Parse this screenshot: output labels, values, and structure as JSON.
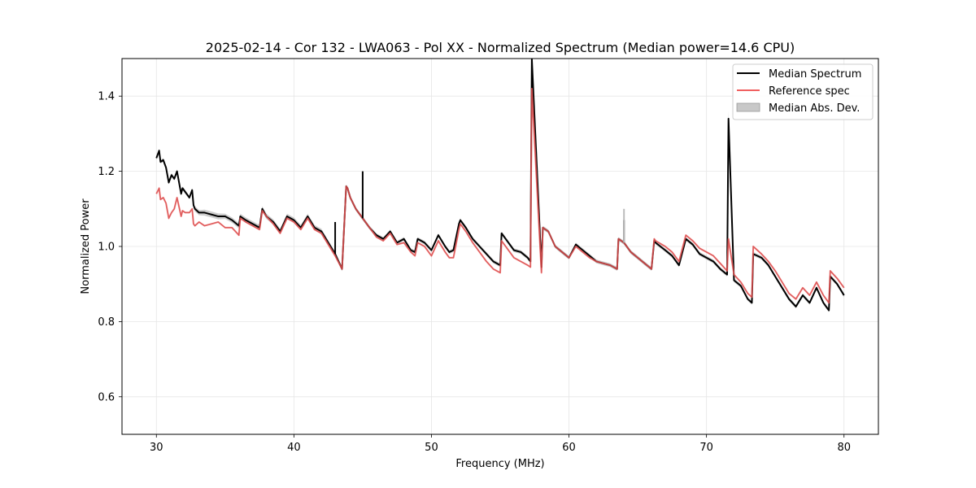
{
  "chart_data": {
    "type": "line",
    "title": "2025-02-14 - Cor 132 - LWA063 - Pol XX - Normalized Spectrum (Median power=14.6 CPU)",
    "xlabel": "Frequency (MHz)",
    "ylabel": "Normalized Power",
    "xlim": [
      27.5,
      82.5
    ],
    "ylim": [
      0.5,
      1.5
    ],
    "xticks": [
      30,
      40,
      50,
      60,
      70,
      80
    ],
    "yticks": [
      0.6,
      0.8,
      1.0,
      1.2,
      1.4
    ],
    "xtick_labels": [
      "30",
      "40",
      "50",
      "60",
      "70",
      "80"
    ],
    "ytick_labels": [
      "0.6",
      "0.8",
      "1.0",
      "1.2",
      "1.4"
    ],
    "grid": true,
    "legend_position": "top-right",
    "colors": {
      "median": "#000000",
      "reference": "#f06060",
      "mad": "#c8c8c8",
      "overlap": "#8b0000"
    },
    "series": [
      {
        "name": "Median Spectrum",
        "x": [
          30.0,
          30.2,
          30.3,
          30.5,
          30.7,
          30.9,
          31.1,
          31.3,
          31.5,
          31.8,
          31.9,
          32.1,
          32.4,
          32.6,
          32.7,
          32.8,
          33.1,
          33.5,
          34.0,
          34.5,
          35.0,
          35.5,
          36.0,
          36.1,
          36.5,
          37.0,
          37.5,
          37.7,
          38.0,
          38.5,
          39.0,
          39.5,
          40.0,
          40.5,
          41.0,
          41.5,
          42.0,
          42.5,
          43.0,
          43.5,
          43.8,
          43.9,
          44.1,
          44.5,
          45.0,
          45.5,
          46.0,
          46.5,
          47.0,
          47.5,
          48.0,
          48.5,
          48.8,
          49.0,
          49.5,
          50.0,
          50.5,
          51.0,
          51.3,
          51.6,
          52.0,
          52.1,
          52.5,
          53.0,
          53.5,
          54.0,
          54.5,
          55.0,
          55.1,
          55.5,
          56.0,
          56.5,
          57.0,
          57.2,
          57.3,
          58.0,
          58.1,
          58.5,
          59.0,
          59.5,
          60.0,
          60.5,
          61.0,
          61.5,
          62.0,
          62.5,
          63.0,
          63.5,
          63.6,
          64.0,
          64.5,
          65.0,
          65.5,
          66.0,
          66.2,
          66.3,
          67.0,
          67.5,
          68.0,
          68.5,
          69.0,
          69.5,
          70.0,
          70.5,
          71.0,
          71.5,
          71.6,
          72.0,
          72.5,
          73.0,
          73.3,
          73.4,
          74.0,
          74.5,
          75.0,
          75.5,
          76.0,
          76.5,
          77.0,
          77.5,
          78.0,
          78.5,
          78.9,
          79.0,
          79.5,
          80.0
        ],
        "values": [
          1.235,
          1.255,
          1.225,
          1.23,
          1.21,
          1.17,
          1.19,
          1.18,
          1.2,
          1.14,
          1.155,
          1.145,
          1.13,
          1.15,
          1.11,
          1.1,
          1.09,
          1.09,
          1.085,
          1.08,
          1.08,
          1.07,
          1.055,
          1.08,
          1.07,
          1.06,
          1.05,
          1.1,
          1.08,
          1.065,
          1.04,
          1.08,
          1.07,
          1.05,
          1.08,
          1.05,
          1.04,
          1.01,
          0.98,
          0.94,
          1.16,
          1.155,
          1.13,
          1.1,
          1.075,
          1.05,
          1.03,
          1.02,
          1.04,
          1.01,
          1.02,
          0.99,
          0.985,
          1.02,
          1.01,
          0.99,
          1.03,
          1.0,
          0.985,
          0.99,
          1.06,
          1.07,
          1.05,
          1.02,
          1.0,
          0.98,
          0.96,
          0.95,
          1.035,
          1.015,
          0.99,
          0.985,
          0.97,
          0.96,
          1.5,
          0.945,
          1.05,
          1.04,
          1.0,
          0.985,
          0.97,
          1.005,
          0.99,
          0.975,
          0.96,
          0.955,
          0.95,
          0.94,
          1.02,
          1.01,
          0.985,
          0.97,
          0.955,
          0.94,
          1.015,
          1.01,
          0.99,
          0.975,
          0.95,
          1.02,
          1.005,
          0.98,
          0.97,
          0.96,
          0.94,
          0.925,
          1.34,
          0.91,
          0.895,
          0.86,
          0.85,
          0.98,
          0.97,
          0.95,
          0.92,
          0.89,
          0.86,
          0.84,
          0.87,
          0.85,
          0.89,
          0.85,
          0.83,
          0.92,
          0.9,
          0.87
        ]
      },
      {
        "name": "Reference spec",
        "x": [
          30.0,
          30.2,
          30.3,
          30.5,
          30.7,
          30.9,
          31.1,
          31.3,
          31.5,
          31.8,
          31.9,
          32.1,
          32.4,
          32.6,
          32.7,
          32.8,
          33.1,
          33.5,
          34.0,
          34.5,
          35.0,
          35.5,
          36.0,
          36.1,
          36.5,
          37.0,
          37.5,
          37.7,
          38.0,
          38.5,
          39.0,
          39.5,
          40.0,
          40.5,
          41.0,
          41.5,
          42.0,
          42.5,
          43.0,
          43.5,
          43.8,
          43.9,
          44.1,
          44.5,
          45.0,
          45.5,
          46.0,
          46.5,
          47.0,
          47.5,
          48.0,
          48.5,
          48.8,
          49.0,
          49.5,
          50.0,
          50.5,
          51.0,
          51.3,
          51.6,
          52.0,
          52.1,
          52.5,
          53.0,
          53.5,
          54.0,
          54.5,
          55.0,
          55.1,
          55.5,
          56.0,
          56.5,
          57.0,
          57.2,
          57.3,
          58.0,
          58.1,
          58.5,
          59.0,
          59.5,
          60.0,
          60.5,
          61.0,
          61.5,
          62.0,
          62.5,
          63.0,
          63.5,
          63.6,
          64.0,
          64.5,
          65.0,
          65.5,
          66.0,
          66.2,
          66.3,
          67.0,
          67.5,
          68.0,
          68.5,
          69.0,
          69.5,
          70.0,
          70.5,
          71.0,
          71.5,
          71.6,
          72.0,
          72.5,
          73.0,
          73.3,
          73.4,
          74.0,
          74.5,
          75.0,
          75.5,
          76.0,
          76.5,
          77.0,
          77.5,
          78.0,
          78.5,
          78.9,
          79.0,
          79.5,
          80.0
        ],
        "values": [
          1.14,
          1.155,
          1.125,
          1.13,
          1.115,
          1.075,
          1.09,
          1.1,
          1.13,
          1.08,
          1.095,
          1.09,
          1.09,
          1.1,
          1.06,
          1.055,
          1.065,
          1.055,
          1.06,
          1.065,
          1.05,
          1.05,
          1.03,
          1.075,
          1.065,
          1.055,
          1.045,
          1.095,
          1.08,
          1.06,
          1.035,
          1.075,
          1.065,
          1.045,
          1.075,
          1.045,
          1.035,
          1.005,
          0.975,
          0.94,
          1.16,
          1.155,
          1.13,
          1.1,
          1.075,
          1.05,
          1.025,
          1.015,
          1.035,
          1.005,
          1.01,
          0.985,
          0.975,
          1.01,
          1.0,
          0.975,
          1.015,
          0.985,
          0.97,
          0.97,
          1.045,
          1.06,
          1.04,
          1.01,
          0.985,
          0.96,
          0.94,
          0.93,
          1.015,
          0.995,
          0.97,
          0.96,
          0.95,
          0.945,
          1.42,
          0.93,
          1.05,
          1.04,
          1.0,
          0.985,
          0.97,
          1.0,
          0.985,
          0.97,
          0.96,
          0.955,
          0.95,
          0.94,
          1.02,
          1.01,
          0.985,
          0.97,
          0.955,
          0.94,
          1.02,
          1.015,
          1.0,
          0.985,
          0.96,
          1.03,
          1.015,
          0.995,
          0.985,
          0.975,
          0.955,
          0.935,
          1.02,
          0.925,
          0.905,
          0.875,
          0.865,
          1.0,
          0.98,
          0.96,
          0.935,
          0.905,
          0.875,
          0.86,
          0.89,
          0.87,
          0.905,
          0.87,
          0.85,
          0.935,
          0.915,
          0.89
        ]
      },
      {
        "name": "Median Abs. Dev.",
        "x": [
          30.0,
          30.2,
          30.3,
          30.5,
          30.7,
          30.9,
          31.1,
          31.3,
          31.5,
          31.8,
          31.9,
          32.1,
          32.4,
          32.6,
          32.7,
          32.8,
          33.1,
          33.5,
          34.0,
          34.5,
          35.0,
          35.5,
          36.0,
          36.1,
          36.5,
          37.0,
          37.5,
          37.7,
          38.0,
          38.5,
          39.0,
          39.5,
          40.0,
          40.5,
          41.0,
          41.5,
          42.0,
          42.5,
          43.0,
          43.5,
          43.8,
          43.9,
          44.1,
          44.5,
          45.0,
          45.5,
          46.0,
          46.5,
          47.0,
          47.5,
          48.0,
          48.5,
          48.8,
          49.0,
          49.5,
          50.0,
          50.5,
          51.0,
          51.3,
          51.6,
          52.0,
          52.1,
          52.5,
          53.0,
          53.5,
          54.0,
          54.5,
          55.0,
          55.1,
          55.5,
          56.0,
          56.5,
          57.0,
          57.2,
          57.3,
          58.0,
          58.1,
          58.5,
          59.0,
          59.5,
          60.0,
          60.5,
          61.0,
          61.5,
          62.0,
          62.5,
          63.0,
          63.5,
          63.6,
          64.0,
          64.5,
          65.0,
          65.5,
          66.0,
          66.2,
          66.3,
          67.0,
          67.5,
          68.0,
          68.5,
          69.0,
          69.5,
          70.0,
          70.5,
          71.0,
          71.5,
          71.6,
          72.0,
          72.5,
          73.0,
          73.3,
          73.4,
          74.0,
          74.5,
          75.0,
          75.5,
          76.0,
          76.5,
          77.0,
          77.5,
          78.0,
          78.5,
          78.9,
          79.0,
          79.5,
          80.0
        ],
        "lower": [
          1.23,
          1.25,
          1.22,
          1.225,
          1.205,
          1.165,
          1.185,
          1.175,
          1.195,
          1.135,
          1.15,
          1.14,
          1.125,
          1.145,
          1.105,
          1.093,
          1.083,
          1.082,
          1.077,
          1.072,
          1.073,
          1.063,
          1.048,
          1.073,
          1.063,
          1.053,
          1.043,
          1.093,
          1.073,
          1.058,
          1.033,
          1.073,
          1.063,
          1.043,
          1.073,
          1.043,
          1.033,
          1.004,
          0.974,
          0.934,
          1.155,
          1.15,
          1.125,
          1.095,
          1.07,
          1.045,
          1.025,
          1.015,
          1.035,
          1.005,
          1.015,
          0.985,
          0.98,
          1.015,
          1.005,
          0.985,
          1.025,
          0.995,
          0.98,
          0.985,
          1.055,
          1.065,
          1.045,
          1.015,
          0.995,
          0.975,
          0.955,
          0.945,
          1.03,
          1.01,
          0.985,
          0.98,
          0.965,
          0.955,
          1.38,
          0.94,
          1.045,
          1.035,
          0.995,
          0.98,
          0.965,
          1.0,
          0.985,
          0.97,
          0.955,
          0.95,
          0.945,
          0.935,
          1.015,
          1.005,
          0.98,
          0.965,
          0.95,
          0.935,
          1.01,
          1.005,
          0.985,
          0.97,
          0.945,
          1.015,
          1.0,
          0.975,
          0.965,
          0.955,
          0.935,
          0.92,
          1.3,
          0.905,
          0.89,
          0.855,
          0.845,
          0.975,
          0.965,
          0.945,
          0.915,
          0.885,
          0.855,
          0.835,
          0.865,
          0.845,
          0.885,
          0.845,
          0.825,
          0.915,
          0.895,
          0.865
        ],
        "upper": [
          1.24,
          1.26,
          1.23,
          1.235,
          1.215,
          1.175,
          1.195,
          1.185,
          1.205,
          1.145,
          1.16,
          1.15,
          1.135,
          1.155,
          1.115,
          1.107,
          1.097,
          1.098,
          1.093,
          1.088,
          1.087,
          1.077,
          1.062,
          1.087,
          1.077,
          1.067,
          1.057,
          1.107,
          1.087,
          1.072,
          1.047,
          1.087,
          1.077,
          1.057,
          1.087,
          1.057,
          1.047,
          1.016,
          0.986,
          0.946,
          1.165,
          1.16,
          1.135,
          1.105,
          1.08,
          1.055,
          1.035,
          1.025,
          1.045,
          1.015,
          1.025,
          0.995,
          0.99,
          1.025,
          1.015,
          0.995,
          1.035,
          1.005,
          0.99,
          0.995,
          1.065,
          1.075,
          1.055,
          1.025,
          1.005,
          0.985,
          0.965,
          0.955,
          1.04,
          1.02,
          0.995,
          0.99,
          0.975,
          0.965,
          1.5,
          0.95,
          1.055,
          1.045,
          1.005,
          0.99,
          0.975,
          1.01,
          0.995,
          0.98,
          0.965,
          0.96,
          0.955,
          0.945,
          1.025,
          1.015,
          0.99,
          0.975,
          0.96,
          0.945,
          1.02,
          1.015,
          0.995,
          0.98,
          0.955,
          1.025,
          1.01,
          0.985,
          0.975,
          0.965,
          0.945,
          0.93,
          1.36,
          0.915,
          0.9,
          0.865,
          0.855,
          0.985,
          0.975,
          0.955,
          0.925,
          0.895,
          0.865,
          0.845,
          0.875,
          0.855,
          0.895,
          0.855,
          0.835,
          0.925,
          0.905,
          0.875
        ]
      }
    ],
    "spikes": [
      {
        "name": "Median Spectrum",
        "x": 43.0,
        "value": 1.065
      },
      {
        "name": "Median Spectrum",
        "x": 45.0,
        "value": 1.2
      },
      {
        "name": "Median Spectrum",
        "x": 64.0,
        "value": 1.07
      },
      {
        "name": "Median Abs. Dev.",
        "x": 64.0,
        "value": 1.1
      }
    ],
    "legend": [
      {
        "label": "Median Spectrum",
        "kind": "line",
        "color": "#000000"
      },
      {
        "label": "Reference spec",
        "kind": "line",
        "color": "#f06060"
      },
      {
        "label": "Median Abs. Dev.",
        "kind": "patch",
        "color": "#c8c8c8"
      }
    ]
  }
}
